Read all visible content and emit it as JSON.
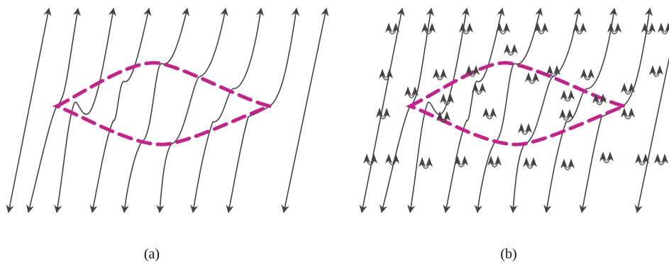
{
  "panels": [
    {
      "id": "a",
      "caption": "(a)",
      "arrowheads": "ends-only"
    },
    {
      "id": "b",
      "caption": "(b)",
      "arrowheads": "ends-and-intermediate"
    }
  ],
  "colors": {
    "strands": "#444444",
    "boundary_dashed": "#C0258A",
    "caption": "#111111"
  }
}
